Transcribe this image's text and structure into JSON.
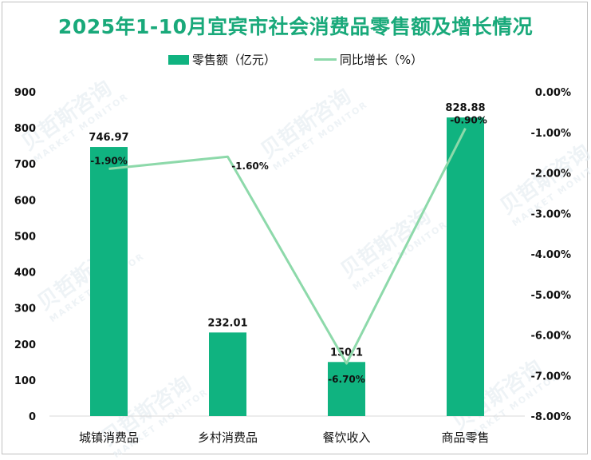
{
  "title": "2025年1-10月宜宾市社会消费品零售额及增长情况",
  "legend": {
    "bar_label": "零售额（亿元）",
    "line_label": "同比增长（%）"
  },
  "watermark": {
    "cn": "贝哲斯咨询",
    "en": "MARKET MONITOR"
  },
  "colors": {
    "bar": "#10b380",
    "line": "#8dd9aa",
    "title": "#19a97a",
    "axis_line": "#d9d9d9"
  },
  "left_axis_ticks": [
    "900",
    "800",
    "700",
    "600",
    "500",
    "400",
    "300",
    "200",
    "100",
    "0"
  ],
  "right_axis_ticks": [
    "0.00%",
    "-1.00%",
    "-2.00%",
    "-3.00%",
    "-4.00%",
    "-5.00%",
    "-6.00%",
    "-7.00%",
    "-8.00%"
  ],
  "chart_data": {
    "type": "bar",
    "title": "2025年1-10月宜宾市社会消费品零售额及增长情况",
    "categories": [
      "城镇消费品",
      "乡村消费品",
      "餐饮收入",
      "商品零售"
    ],
    "series": [
      {
        "name": "零售额（亿元）",
        "type": "bar",
        "axis": "left",
        "values": [
          746.97,
          232.01,
          150.1,
          828.88
        ],
        "labels": [
          "746.97",
          "232.01",
          "150.1",
          "828.88"
        ]
      },
      {
        "name": "同比增长（%）",
        "type": "line",
        "axis": "right",
        "values": [
          -1.9,
          -1.6,
          -6.7,
          -0.9
        ],
        "labels": [
          "-1.90%",
          "-1.60%",
          "-6.70%",
          "-0.90%"
        ]
      }
    ],
    "xlabel": "",
    "ylabel_left": "",
    "ylabel_right": "",
    "ylim_left": [
      0,
      900
    ],
    "ylim_right": [
      -8,
      0
    ],
    "grid": false,
    "legend_position": "top"
  }
}
